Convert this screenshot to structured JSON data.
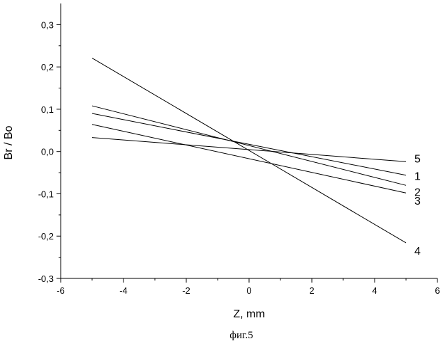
{
  "chart_data": {
    "type": "line",
    "xlabel": "Z, mm",
    "ylabel": "Br / Bo",
    "xlim": [
      -6,
      6
    ],
    "ylim": [
      -0.3,
      0.35
    ],
    "x_ticks": [
      -6,
      -4,
      -2,
      0,
      2,
      4,
      6
    ],
    "x_tick_labels": [
      "-6",
      "-4",
      "-2",
      "0",
      "2",
      "4",
      "6"
    ],
    "y_ticks": [
      -0.3,
      -0.2,
      -0.1,
      0.0,
      0.1,
      0.2,
      0.3
    ],
    "y_tick_labels": [
      "-0,3",
      "-0,2",
      "-0,1",
      "0,0",
      "0,1",
      "0,2",
      "0,3"
    ],
    "grid": false,
    "series": [
      {
        "name": "1",
        "x": [
          -5,
          5
        ],
        "y": [
          0.09,
          -0.056
        ]
      },
      {
        "name": "2",
        "x": [
          -5,
          5
        ],
        "y": [
          0.108,
          -0.08
        ]
      },
      {
        "name": "3",
        "x": [
          -5,
          5
        ],
        "y": [
          0.064,
          -0.098
        ]
      },
      {
        "name": "4",
        "x": [
          -5,
          5
        ],
        "y": [
          0.221,
          -0.216
        ]
      },
      {
        "name": "5",
        "x": [
          -5,
          5
        ],
        "y": [
          0.033,
          -0.024
        ]
      }
    ],
    "caption": "фиг.5"
  }
}
